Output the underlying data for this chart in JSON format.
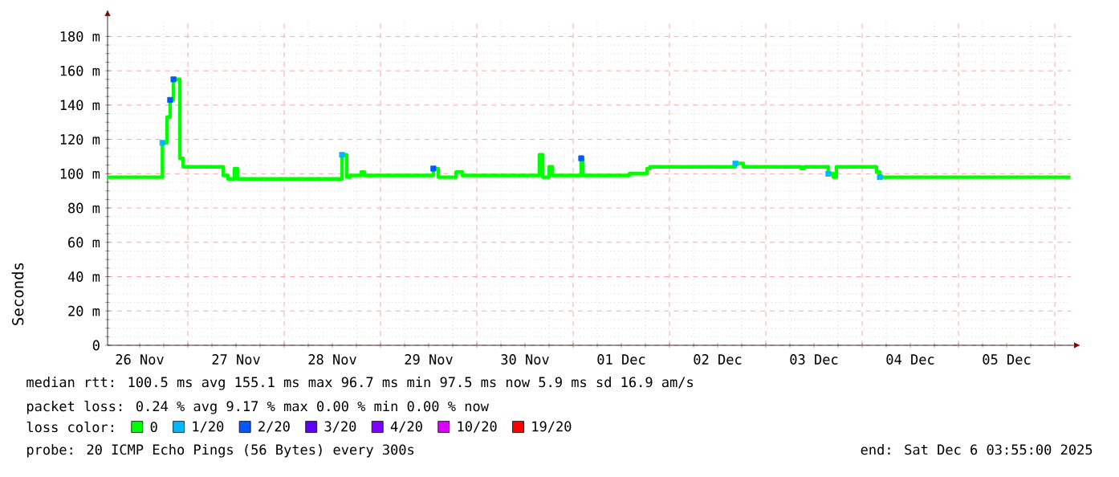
{
  "chart_data": {
    "type": "step",
    "ylabel": "Seconds",
    "legend_title": "loss color:",
    "legend": "bottom",
    "grid": true,
    "xlim": [
      "2025-11-26T04:00",
      "2025-12-06T04:00"
    ],
    "xticks": [
      {
        "value": "2025-11-26T12:00",
        "label": "26 Nov"
      },
      {
        "value": "2025-11-27T00:00",
        "label": null
      },
      {
        "value": "2025-11-27T12:00",
        "label": "27 Nov"
      },
      {
        "value": "2025-11-28T00:00",
        "label": null
      },
      {
        "value": "2025-11-28T12:00",
        "label": "28 Nov"
      },
      {
        "value": "2025-11-29T00:00",
        "label": null
      },
      {
        "value": "2025-11-29T12:00",
        "label": "29 Nov"
      },
      {
        "value": "2025-11-30T00:00",
        "label": null
      },
      {
        "value": "2025-11-30T12:00",
        "label": "30 Nov"
      },
      {
        "value": "2025-12-01T00:00",
        "label": null
      },
      {
        "value": "2025-12-01T12:00",
        "label": "01 Dec"
      },
      {
        "value": "2025-12-02T00:00",
        "label": null
      },
      {
        "value": "2025-12-02T12:00",
        "label": "02 Dec"
      },
      {
        "value": "2025-12-03T00:00",
        "label": null
      },
      {
        "value": "2025-12-03T12:00",
        "label": "03 Dec"
      },
      {
        "value": "2025-12-04T00:00",
        "label": null
      },
      {
        "value": "2025-12-04T12:00",
        "label": "04 Dec"
      },
      {
        "value": "2025-12-05T00:00",
        "label": null
      },
      {
        "value": "2025-12-05T12:00",
        "label": "05 Dec"
      },
      {
        "value": "2025-12-06T00:00",
        "label": null
      }
    ],
    "ylim": [
      0,
      190
    ],
    "yticks": [
      0,
      {
        "value": 20,
        "label": "20 m"
      },
      {
        "value": 40,
        "label": "40 m"
      },
      {
        "value": 60,
        "label": "60 m"
      },
      {
        "value": 80,
        "label": "80 m"
      },
      {
        "value": 100,
        "label": "100 m"
      },
      {
        "value": 120,
        "label": "120 m"
      },
      {
        "value": 140,
        "label": "140 m"
      },
      {
        "value": 160,
        "label": "160 m"
      },
      {
        "value": 180,
        "label": "180 m"
      }
    ],
    "series": [
      {
        "name": "0",
        "color": "#00ff00",
        "x": [
          "2025-11-26T04:00",
          "2025-11-26T17:40",
          "2025-11-26T18:50",
          "2025-11-26T19:35",
          "2025-11-26T20:25",
          "2025-11-26T22:00",
          "2025-11-26T22:50",
          "2025-11-27T08:50",
          "2025-11-27T10:00",
          "2025-11-27T11:35",
          "2025-11-27T12:25",
          "2025-11-28T14:25",
          "2025-11-28T15:35",
          "2025-11-28T16:25",
          "2025-11-28T19:10",
          "2025-11-28T20:00",
          "2025-11-29T13:10",
          "2025-11-29T14:25",
          "2025-11-29T18:50",
          "2025-11-29T20:25",
          "2025-11-30T15:35",
          "2025-11-30T16:25",
          "2025-11-30T18:00",
          "2025-11-30T18:50",
          "2025-12-01T02:00",
          "2025-12-01T02:25",
          "2025-12-01T14:00",
          "2025-12-01T18:25",
          "2025-12-01T19:10",
          "2025-12-02T16:25",
          "2025-12-02T18:25",
          "2025-12-03T08:50",
          "2025-12-03T09:35",
          "2025-12-03T15:35",
          "2025-12-03T16:50",
          "2025-12-03T17:35",
          "2025-12-04T03:35",
          "2025-12-04T04:25",
          "2025-12-06T03:55"
        ],
        "values": [
          98,
          118,
          133,
          143,
          155,
          109,
          104,
          99,
          97,
          103,
          97,
          111,
          98,
          99,
          101,
          99,
          103,
          98,
          101,
          99,
          111,
          98,
          104,
          99,
          109,
          99,
          100,
          103,
          104,
          106,
          104,
          103,
          104,
          100,
          98,
          104,
          101,
          98,
          98
        ]
      },
      {
        "name": "1/20",
        "color": "#00b8ff",
        "type": "scatter",
        "marker": "square",
        "x": [
          "2025-11-26T17:40",
          "2025-11-28T14:25",
          "2025-12-02T16:25",
          "2025-12-03T15:35",
          "2025-12-04T04:25"
        ],
        "values": [
          118,
          111,
          106,
          100,
          98
        ]
      },
      {
        "name": "2/20",
        "color": "#0059ff",
        "type": "scatter",
        "marker": "square",
        "x": [
          "2025-11-26T19:35",
          "2025-11-26T20:25",
          "2025-11-29T13:10",
          "2025-12-01T02:00"
        ],
        "values": [
          143,
          155,
          103,
          109
        ]
      },
      {
        "name": "3/20",
        "color": "#5e00ff"
      },
      {
        "name": "4/20",
        "color": "#7e00ff"
      },
      {
        "name": "10/20",
        "color": "#dd00ff"
      },
      {
        "name": "19/20",
        "color": "#ff0000"
      }
    ],
    "annotations": [
      "median rtt: 100.5 ms avg 155.1 ms max 96.7 ms min 97.5 ms now 5.9 ms sd 16.9 am/s",
      "packet loss: 0.24 % avg 9.17 % max 0.00 % min 0.00 % now",
      "probe: 20 ICMP Echo Pings (56 Bytes) every 300s",
      "end: Sat Dec 6 03:55:00 2025"
    ]
  }
}
